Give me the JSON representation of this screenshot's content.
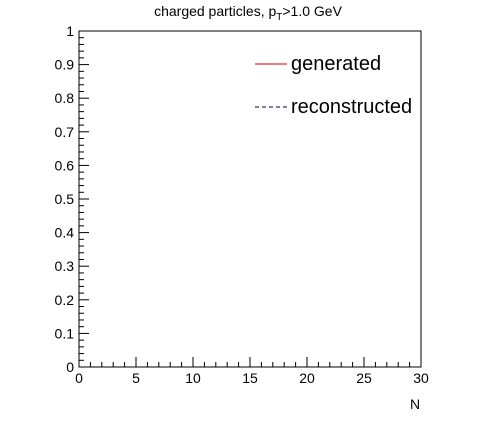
{
  "chart_data": {
    "type": "line",
    "title": {
      "prefix": "charged particles, p",
      "subscript": "T",
      "suffix": ">1.0 GeV"
    },
    "xlabel": "N",
    "ylabel": "",
    "xlim": [
      0,
      30
    ],
    "ylim": [
      0,
      1
    ],
    "x_ticks": [
      "0",
      "5",
      "10",
      "15",
      "20",
      "25",
      "30"
    ],
    "y_ticks": [
      "0",
      "0.1",
      "0.2",
      "0.3",
      "0.4",
      "0.5",
      "0.6",
      "0.7",
      "0.8",
      "0.9",
      "1"
    ],
    "grid": false,
    "legend_position": "top-right",
    "series": [
      {
        "name": "generated",
        "color": "#cc0000",
        "line_style": "solid",
        "x": [],
        "y": []
      },
      {
        "name": "reconstructed",
        "color": "#000033",
        "line_style": "dashed",
        "x": [],
        "y": []
      }
    ]
  }
}
